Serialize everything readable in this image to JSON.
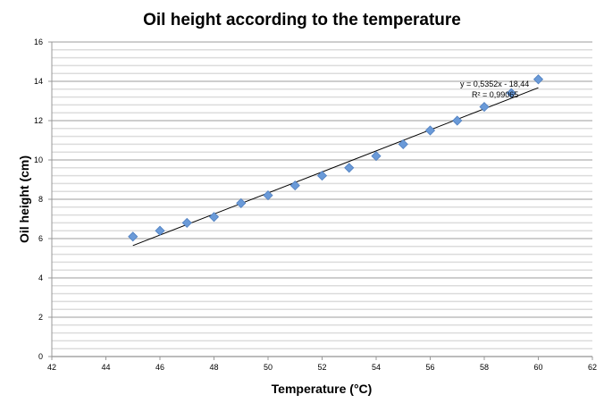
{
  "chart_data": {
    "type": "scatter",
    "title": "Oil height according to the temperature",
    "xlabel": "Temperature (°C)",
    "ylabel": "Oil height (cm)",
    "xlim": [
      42,
      62
    ],
    "ylim": [
      0,
      16
    ],
    "xticks": [
      42,
      44,
      46,
      48,
      50,
      52,
      54,
      56,
      58,
      60,
      62
    ],
    "yticks": [
      0,
      2,
      4,
      6,
      8,
      10,
      12,
      14,
      16
    ],
    "grid": "horizontal major every 2, minor every 0.4",
    "legend": "none",
    "series": [
      {
        "name": "Oil height",
        "marker": "diamond",
        "color": "#6a9ad8",
        "x": [
          45,
          46,
          47,
          48,
          49,
          50,
          51,
          52,
          53,
          54,
          55,
          56,
          57,
          58,
          59,
          60
        ],
        "y": [
          6.1,
          6.4,
          6.8,
          7.1,
          7.8,
          8.2,
          8.7,
          9.2,
          9.6,
          10.2,
          10.8,
          11.5,
          12.0,
          12.7,
          13.4,
          14.1
        ]
      }
    ],
    "trendline": {
      "type": "linear",
      "slope": 0.5352,
      "intercept": -18.44,
      "x_range": [
        45,
        60
      ],
      "equation_label": "y = 0,5352x - 18,44",
      "r2_label": "R² = 0,99065"
    }
  }
}
